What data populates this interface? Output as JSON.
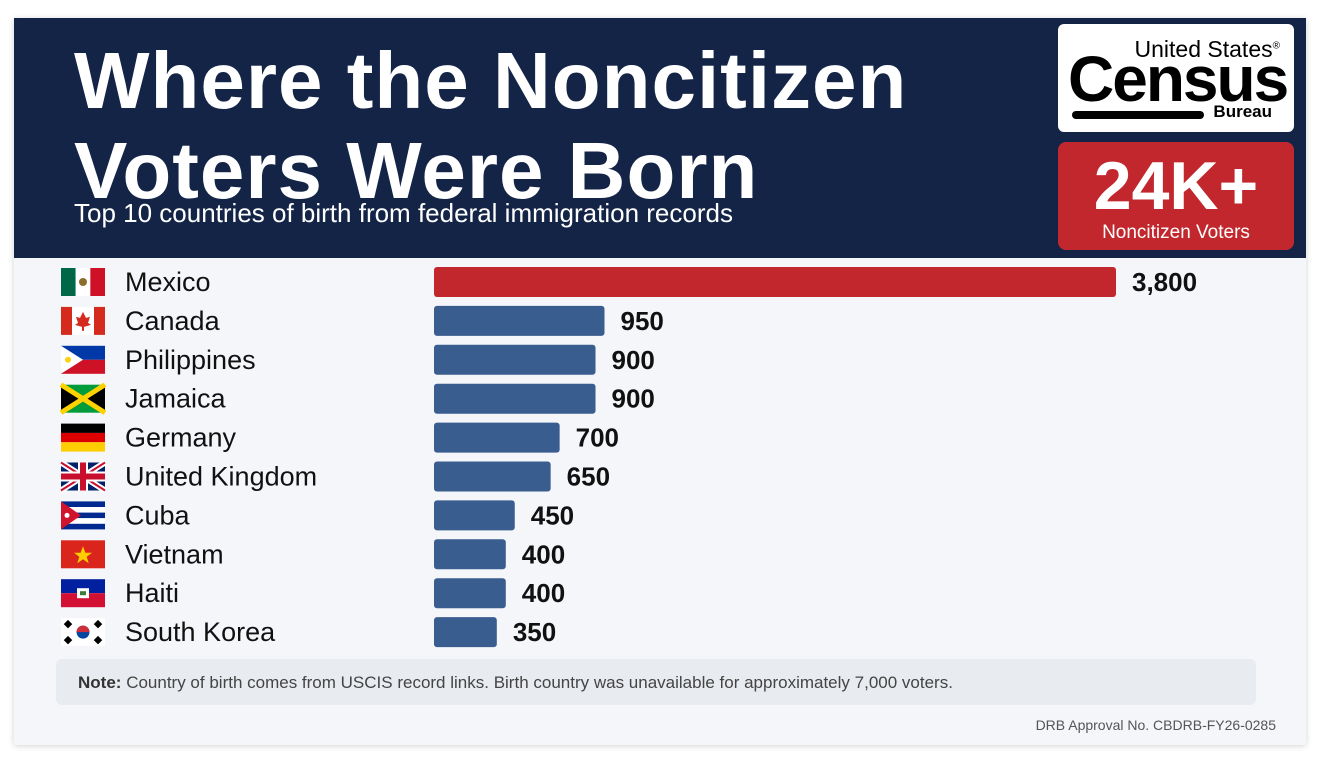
{
  "header": {
    "title_line1": "Where the Noncitizen",
    "title_line2": "Voters Were Born",
    "subtitle": "Top 10 countries of birth from federal immigration records"
  },
  "logo": {
    "top": "United States",
    "reg": "®",
    "big": "Census",
    "bureau": "Bureau"
  },
  "badge": {
    "number": "24K+",
    "label": "Noncitizen Voters"
  },
  "chart_data": {
    "type": "bar",
    "orientation": "horizontal",
    "categories": [
      "Mexico",
      "Canada",
      "Philippines",
      "Jamaica",
      "Germany",
      "United Kingdom",
      "Cuba",
      "Vietnam",
      "Haiti",
      "South Korea"
    ],
    "values": [
      3800,
      950,
      900,
      900,
      700,
      650,
      450,
      400,
      400,
      350
    ],
    "value_labels": [
      "3,800",
      "950",
      "900",
      "900",
      "700",
      "650",
      "450",
      "400",
      "400",
      "350"
    ],
    "xlim": [
      0,
      3800
    ],
    "grid": false,
    "highlight_color": "#c1272d",
    "bar_color": "#3a5d8f"
  },
  "flags": [
    "mexico-flag-icon",
    "canada-flag-icon",
    "philippines-flag-icon",
    "jamaica-flag-icon",
    "germany-flag-icon",
    "united-kingdom-flag-icon",
    "cuba-flag-icon",
    "vietnam-flag-icon",
    "haiti-flag-icon",
    "south-korea-flag-icon"
  ],
  "note": {
    "label": "Note:",
    "text": "Country of birth comes from USCIS record links.  Birth country was unavailable for approximately 7,000 voters."
  },
  "footer": {
    "approval": "DRB Approval No. CBDRB-FY26-0285"
  }
}
